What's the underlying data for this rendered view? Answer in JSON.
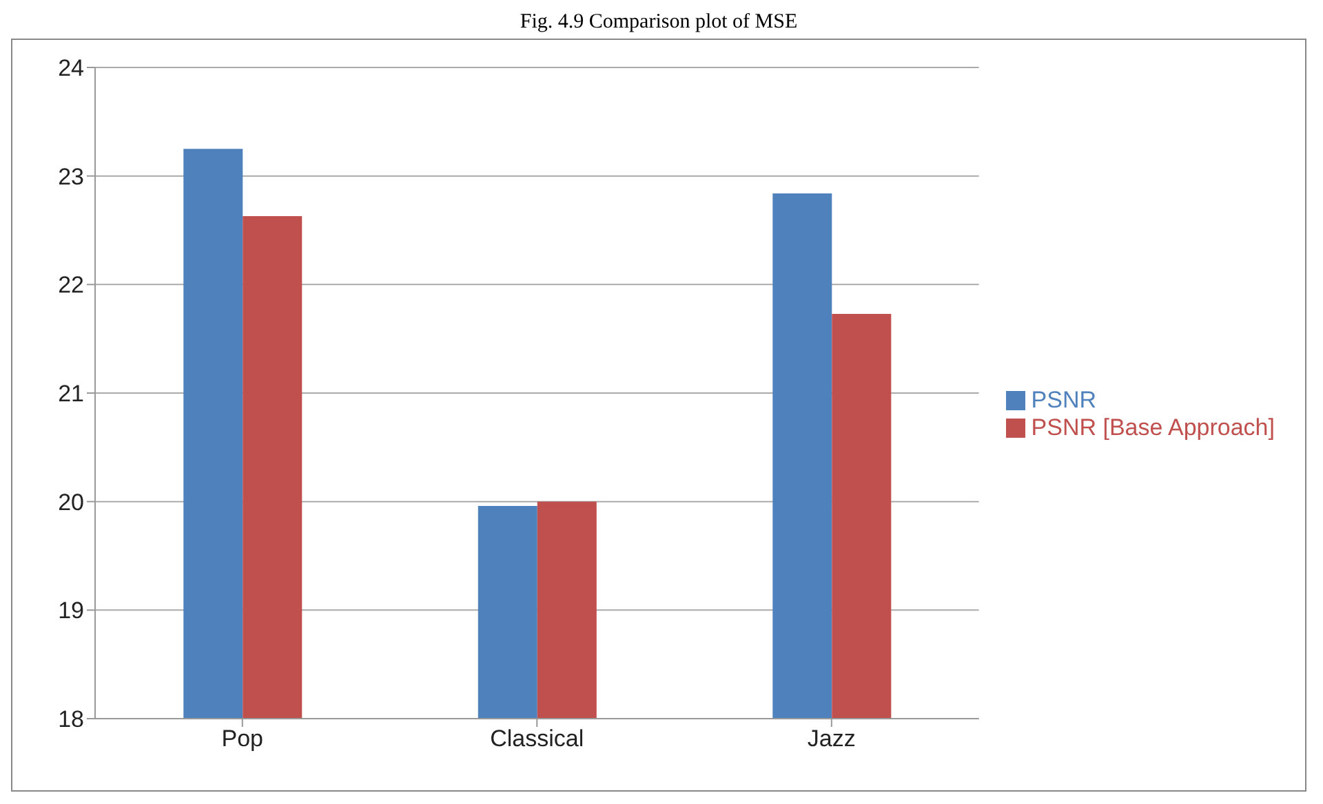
{
  "chart_data": {
    "type": "bar",
    "title": "Fig. 4.9 Comparison plot of MSE",
    "categories": [
      "Pop",
      "Classical",
      "Jazz"
    ],
    "series": [
      {
        "name": "PSNR",
        "color": "#4f81bd",
        "values": [
          23.25,
          19.96,
          22.84
        ]
      },
      {
        "name": "PSNR [Base Approach]",
        "color": "#c0504d",
        "values": [
          22.63,
          20.0,
          21.73
        ]
      }
    ],
    "ylim": [
      18,
      24
    ],
    "yticks": [
      18,
      19,
      20,
      21,
      22,
      23,
      24
    ],
    "grid": "y",
    "legend": "right"
  }
}
